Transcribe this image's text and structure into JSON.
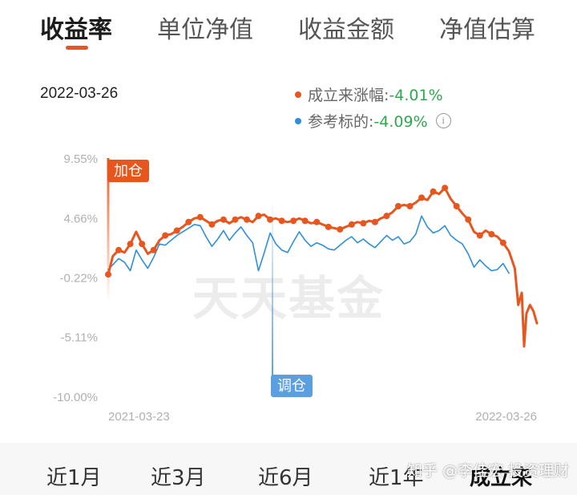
{
  "tabs": [
    {
      "label": "收益率",
      "active": true
    },
    {
      "label": "单位净值",
      "active": false
    },
    {
      "label": "收益金额",
      "active": false
    },
    {
      "label": "净值估算",
      "active": false
    }
  ],
  "date": "2022-03-26",
  "legend": [
    {
      "name": "成立来涨幅:",
      "value": "-4.01%",
      "color": "#e8561f"
    },
    {
      "name": "参考标的:",
      "value": "-4.09%",
      "color": "#2f8fd8"
    }
  ],
  "ranges": [
    {
      "label": "近1月"
    },
    {
      "label": "近3月"
    },
    {
      "label": "近6月"
    },
    {
      "label": "近1年"
    },
    {
      "label": "成立来",
      "active": true
    }
  ],
  "watermark_text": "知乎 @李佳宏 投资理财",
  "chart_data": {
    "type": "line",
    "yticks": [
      "9.55%",
      "4.66%",
      "-0.22%",
      "-5.11%",
      "-10.00%"
    ],
    "ylim": [
      -10.0,
      9.55
    ],
    "xlim": [
      "2021-03-23",
      "2022-03-26"
    ],
    "xticks": [
      "2021-03-23",
      "2022-03-26"
    ],
    "grid": false,
    "watermark": "天天基金",
    "colors": {
      "fund": "#e8561f",
      "benchmark": "#2f8fd8"
    },
    "markers": [
      {
        "label": "加仓",
        "date": "2021-03-23",
        "color": "#e8561f"
      },
      {
        "label": "调仓",
        "date": "2021-08-11",
        "color": "#5b9fe0"
      }
    ],
    "series": [
      {
        "name": "成立来涨幅",
        "points": [
          [
            "2021-03-23",
            0.0
          ],
          [
            "2021-03-27",
            1.5
          ],
          [
            "2021-04-01",
            2.0
          ],
          [
            "2021-04-06",
            1.8
          ],
          [
            "2021-04-11",
            2.5
          ],
          [
            "2021-04-16",
            3.5
          ],
          [
            "2021-04-21",
            2.5
          ],
          [
            "2021-04-26",
            1.7
          ],
          [
            "2021-05-01",
            2.0
          ],
          [
            "2021-05-06",
            2.8
          ],
          [
            "2021-05-11",
            3.2
          ],
          [
            "2021-05-16",
            3.3
          ],
          [
            "2021-05-21",
            3.6
          ],
          [
            "2021-05-26",
            3.9
          ],
          [
            "2021-05-31",
            4.3
          ],
          [
            "2021-06-05",
            4.6
          ],
          [
            "2021-06-10",
            4.7
          ],
          [
            "2021-06-15",
            4.4
          ],
          [
            "2021-06-20",
            4.1
          ],
          [
            "2021-06-25",
            4.4
          ],
          [
            "2021-06-30",
            4.5
          ],
          [
            "2021-07-05",
            4.2
          ],
          [
            "2021-07-10",
            4.5
          ],
          [
            "2021-07-15",
            4.7
          ],
          [
            "2021-07-20",
            4.5
          ],
          [
            "2021-07-25",
            4.3
          ],
          [
            "2021-07-30",
            4.8
          ],
          [
            "2021-08-04",
            4.9
          ],
          [
            "2021-08-09",
            4.5
          ],
          [
            "2021-08-14",
            4.6
          ],
          [
            "2021-08-19",
            4.4
          ],
          [
            "2021-08-24",
            4.3
          ],
          [
            "2021-08-29",
            4.4
          ],
          [
            "2021-09-03",
            4.6
          ],
          [
            "2021-09-08",
            4.4
          ],
          [
            "2021-09-13",
            4.2
          ],
          [
            "2021-09-18",
            4.3
          ],
          [
            "2021-09-23",
            4.1
          ],
          [
            "2021-09-28",
            3.9
          ],
          [
            "2021-10-03",
            3.8
          ],
          [
            "2021-10-08",
            3.7
          ],
          [
            "2021-10-13",
            3.9
          ],
          [
            "2021-10-18",
            4.1
          ],
          [
            "2021-10-23",
            4.3
          ],
          [
            "2021-10-28",
            4.2
          ],
          [
            "2021-11-02",
            4.4
          ],
          [
            "2021-11-07",
            4.3
          ],
          [
            "2021-11-12",
            4.6
          ],
          [
            "2021-11-17",
            4.8
          ],
          [
            "2021-11-22",
            5.1
          ],
          [
            "2021-11-27",
            5.6
          ],
          [
            "2021-12-02",
            5.7
          ],
          [
            "2021-12-07",
            5.6
          ],
          [
            "2021-12-12",
            5.9
          ],
          [
            "2021-12-17",
            6.3
          ],
          [
            "2021-12-22",
            6.1
          ],
          [
            "2021-12-27",
            6.8
          ],
          [
            "2022-01-01",
            6.6
          ],
          [
            "2022-01-06",
            7.1
          ],
          [
            "2022-01-11",
            6.2
          ],
          [
            "2022-01-16",
            5.6
          ],
          [
            "2022-01-21",
            5.0
          ],
          [
            "2022-01-26",
            4.5
          ],
          [
            "2022-01-31",
            3.5
          ],
          [
            "2022-02-05",
            3.2
          ],
          [
            "2022-02-10",
            3.6
          ],
          [
            "2022-02-15",
            3.3
          ],
          [
            "2022-02-20",
            3.1
          ],
          [
            "2022-02-25",
            2.6
          ],
          [
            "2022-03-02",
            1.9
          ],
          [
            "2022-03-07",
            0.5
          ],
          [
            "2022-03-10",
            -2.5
          ],
          [
            "2022-03-13",
            -1.5
          ],
          [
            "2022-03-15",
            -5.9
          ],
          [
            "2022-03-17",
            -3.2
          ],
          [
            "2022-03-20",
            -2.5
          ],
          [
            "2022-03-23",
            -3.0
          ],
          [
            "2022-03-26",
            -4.01
          ]
        ]
      },
      {
        "name": "参考标的",
        "points": [
          [
            "2021-03-23",
            0.4
          ],
          [
            "2021-03-27",
            0.8
          ],
          [
            "2021-04-01",
            1.3
          ],
          [
            "2021-04-06",
            1.0
          ],
          [
            "2021-04-11",
            0.3
          ],
          [
            "2021-04-16",
            2.0
          ],
          [
            "2021-04-21",
            1.2
          ],
          [
            "2021-04-26",
            0.5
          ],
          [
            "2021-05-01",
            1.4
          ],
          [
            "2021-05-06",
            2.5
          ],
          [
            "2021-05-11",
            2.4
          ],
          [
            "2021-05-16",
            2.8
          ],
          [
            "2021-05-21",
            3.2
          ],
          [
            "2021-05-26",
            3.5
          ],
          [
            "2021-05-31",
            3.8
          ],
          [
            "2021-06-05",
            4.1
          ],
          [
            "2021-06-10",
            4.0
          ],
          [
            "2021-06-15",
            3.1
          ],
          [
            "2021-06-20",
            2.3
          ],
          [
            "2021-06-25",
            2.9
          ],
          [
            "2021-06-30",
            3.6
          ],
          [
            "2021-07-05",
            2.8
          ],
          [
            "2021-07-10",
            3.4
          ],
          [
            "2021-07-15",
            3.9
          ],
          [
            "2021-07-20",
            3.2
          ],
          [
            "2021-07-25",
            2.6
          ],
          [
            "2021-07-30",
            0.3
          ],
          [
            "2021-08-04",
            1.8
          ],
          [
            "2021-08-09",
            3.4
          ],
          [
            "2021-08-14",
            2.5
          ],
          [
            "2021-08-19",
            2.0
          ],
          [
            "2021-08-24",
            1.8
          ],
          [
            "2021-08-29",
            2.7
          ],
          [
            "2021-09-03",
            3.5
          ],
          [
            "2021-09-08",
            2.8
          ],
          [
            "2021-09-13",
            2.3
          ],
          [
            "2021-09-18",
            2.6
          ],
          [
            "2021-09-23",
            2.4
          ],
          [
            "2021-09-28",
            2.1
          ],
          [
            "2021-10-03",
            2.0
          ],
          [
            "2021-10-08",
            2.4
          ],
          [
            "2021-10-13",
            2.8
          ],
          [
            "2021-10-18",
            3.1
          ],
          [
            "2021-10-23",
            2.6
          ],
          [
            "2021-10-28",
            2.9
          ],
          [
            "2021-11-02",
            2.5
          ],
          [
            "2021-11-07",
            2.2
          ],
          [
            "2021-11-12",
            2.7
          ],
          [
            "2021-11-17",
            3.2
          ],
          [
            "2021-11-22",
            2.8
          ],
          [
            "2021-11-27",
            3.1
          ],
          [
            "2021-12-02",
            2.5
          ],
          [
            "2021-12-07",
            2.7
          ],
          [
            "2021-12-12",
            3.3
          ],
          [
            "2021-12-17",
            4.8
          ],
          [
            "2021-12-22",
            3.9
          ],
          [
            "2021-12-27",
            3.4
          ],
          [
            "2022-01-01",
            3.6
          ],
          [
            "2022-01-06",
            4.0
          ],
          [
            "2022-01-11",
            3.2
          ],
          [
            "2022-01-16",
            2.8
          ],
          [
            "2022-01-21",
            2.5
          ],
          [
            "2022-01-26",
            1.7
          ],
          [
            "2022-01-31",
            0.6
          ],
          [
            "2022-02-05",
            1.2
          ],
          [
            "2022-02-10",
            0.7
          ],
          [
            "2022-02-15",
            0.3
          ],
          [
            "2022-02-20",
            0.4
          ],
          [
            "2022-02-25",
            0.9
          ],
          [
            "2022-03-02",
            0.1
          ]
        ]
      }
    ]
  }
}
